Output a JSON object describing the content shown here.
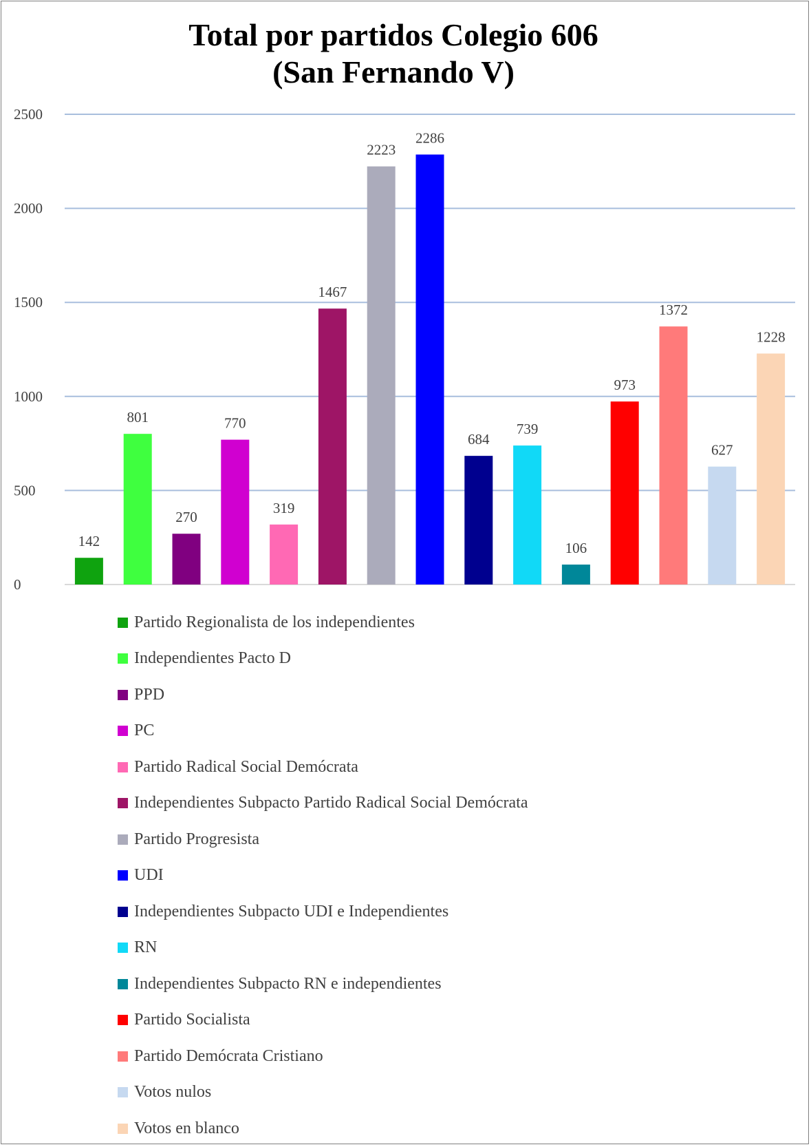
{
  "chart_data": {
    "type": "bar",
    "title": "Total por partidos Colegio 606",
    "subtitle": "(San Fernando V)",
    "xlabel": "",
    "ylabel": "",
    "ylim": [
      0,
      2500
    ],
    "yticks": [
      "0",
      "500",
      "1000",
      "1500",
      "2000",
      "2500"
    ],
    "grid": true,
    "legend_position": "bottom",
    "categories": [
      "Partido Regionalista de los independientes",
      "Independientes Pacto D",
      "PPD",
      "PC",
      "Partido Radical Social Demócrata",
      "Independientes Subpacto Partido Radical Social Demócrata",
      "Partido Progresista",
      "UDI",
      "Independientes Subpacto UDI e Independientes",
      "RN",
      "Independientes Subpacto RN e independientes",
      "Partido Socialista",
      "Partido Demócrata Cristiano",
      "Votos nulos",
      "Votos en blanco"
    ],
    "values": [
      142,
      801,
      270,
      770,
      319,
      1467,
      2223,
      2286,
      684,
      739,
      106,
      973,
      1372,
      627,
      1228
    ],
    "colors": [
      "#0FA30F",
      "#3FFF3F",
      "#800080",
      "#D000D0",
      "#FF69B4",
      "#9E1566",
      "#ABABBB",
      "#0000FF",
      "#00008F",
      "#11D9F7",
      "#008799",
      "#FF0000",
      "#FF7A7A",
      "#C6D9F0",
      "#FBD5B5"
    ],
    "gridline_color": "#A8BEDD"
  }
}
